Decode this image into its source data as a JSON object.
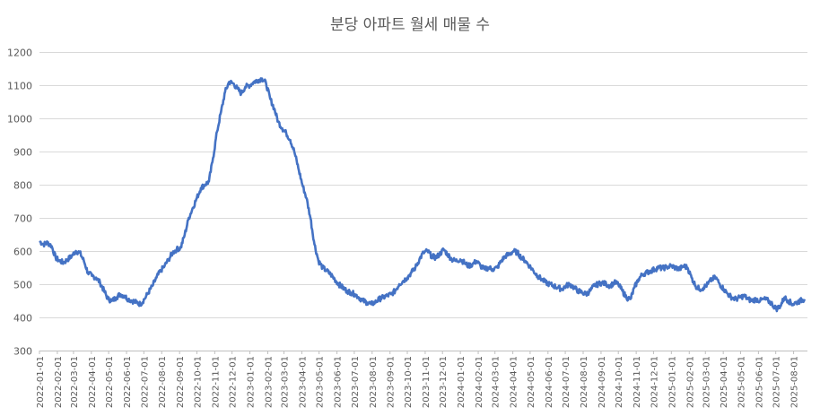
{
  "chart_data": {
    "type": "line",
    "title": "분당 아파트 월세 매물 수",
    "xlabel": "",
    "ylabel": "",
    "ylim": [
      300,
      1200
    ],
    "yticks": [
      300,
      400,
      500,
      600,
      700,
      800,
      900,
      1000,
      1100,
      1200
    ],
    "grid": "horizontal",
    "legend": "none",
    "line_color": "#4472C4",
    "xticks": [
      "2022-01-01",
      "2022-02-01",
      "2022-03-01",
      "2022-04-01",
      "2022-05-01",
      "2022-06-01",
      "2022-07-01",
      "2022-08-01",
      "2022-09-01",
      "2022-10-01",
      "2022-11-01",
      "2022-12-01",
      "2023-01-01",
      "2023-02-01",
      "2023-03-01",
      "2023-04-01",
      "2023-05-01",
      "2023-06-01",
      "2023-07-01",
      "2023-08-01",
      "2023-09-01",
      "2023-10-01",
      "2023-11-01",
      "2023-12-01",
      "2024-01-01",
      "2024-02-01",
      "2024-03-01",
      "2024-04-01",
      "2024-05-01",
      "2024-06-01",
      "2024-07-01",
      "2024-08-01",
      "2024-09-01",
      "2024-10-01",
      "2024-11-01",
      "2024-12-01",
      "2025-01-01",
      "2025-02-01",
      "2025-03-01",
      "2025-04-01",
      "2025-05-01",
      "2025-06-01",
      "2025-07-01",
      "2025-08-01"
    ],
    "series": [
      {
        "values": [
          [
            "2022-01-01",
            630
          ],
          [
            "2022-01-08",
            620
          ],
          [
            "2022-01-15",
            625
          ],
          [
            "2022-01-22",
            615
          ],
          [
            "2022-01-29",
            580
          ],
          [
            "2022-02-05",
            570
          ],
          [
            "2022-02-12",
            565
          ],
          [
            "2022-02-19",
            575
          ],
          [
            "2022-02-26",
            585
          ],
          [
            "2022-03-05",
            600
          ],
          [
            "2022-03-12",
            595
          ],
          [
            "2022-03-19",
            570
          ],
          [
            "2022-03-26",
            535
          ],
          [
            "2022-04-02",
            525
          ],
          [
            "2022-04-09",
            520
          ],
          [
            "2022-04-16",
            505
          ],
          [
            "2022-04-23",
            480
          ],
          [
            "2022-04-30",
            455
          ],
          [
            "2022-05-07",
            450
          ],
          [
            "2022-05-14",
            460
          ],
          [
            "2022-05-21",
            470
          ],
          [
            "2022-05-28",
            465
          ],
          [
            "2022-06-04",
            455
          ],
          [
            "2022-06-11",
            450
          ],
          [
            "2022-06-18",
            445
          ],
          [
            "2022-06-25",
            440
          ],
          [
            "2022-07-02",
            455
          ],
          [
            "2022-07-09",
            475
          ],
          [
            "2022-07-16",
            495
          ],
          [
            "2022-07-23",
            520
          ],
          [
            "2022-07-30",
            540
          ],
          [
            "2022-08-06",
            555
          ],
          [
            "2022-08-13",
            575
          ],
          [
            "2022-08-20",
            595
          ],
          [
            "2022-08-27",
            605
          ],
          [
            "2022-09-03",
            610
          ],
          [
            "2022-09-10",
            650
          ],
          [
            "2022-09-17",
            700
          ],
          [
            "2022-09-24",
            730
          ],
          [
            "2022-10-01",
            760
          ],
          [
            "2022-10-08",
            790
          ],
          [
            "2022-10-15",
            800
          ],
          [
            "2022-10-22",
            810
          ],
          [
            "2022-10-29",
            880
          ],
          [
            "2022-11-05",
            960
          ],
          [
            "2022-11-12",
            1020
          ],
          [
            "2022-11-19",
            1080
          ],
          [
            "2022-11-26",
            1110
          ],
          [
            "2022-12-03",
            1105
          ],
          [
            "2022-12-10",
            1090
          ],
          [
            "2022-12-17",
            1075
          ],
          [
            "2022-12-24",
            1095
          ],
          [
            "2023-01-01",
            1100
          ],
          [
            "2023-01-08",
            1110
          ],
          [
            "2023-01-15",
            1115
          ],
          [
            "2023-01-22",
            1120
          ],
          [
            "2023-01-29",
            1105
          ],
          [
            "2023-02-05",
            1060
          ],
          [
            "2023-02-12",
            1030
          ],
          [
            "2023-02-19",
            990
          ],
          [
            "2023-02-26",
            970
          ],
          [
            "2023-03-05",
            955
          ],
          [
            "2023-03-12",
            935
          ],
          [
            "2023-03-19",
            900
          ],
          [
            "2023-03-26",
            850
          ],
          [
            "2023-04-02",
            800
          ],
          [
            "2023-04-09",
            760
          ],
          [
            "2023-04-16",
            700
          ],
          [
            "2023-04-23",
            620
          ],
          [
            "2023-04-30",
            570
          ],
          [
            "2023-05-07",
            550
          ],
          [
            "2023-05-14",
            540
          ],
          [
            "2023-05-21",
            530
          ],
          [
            "2023-05-28",
            515
          ],
          [
            "2023-06-04",
            500
          ],
          [
            "2023-06-11",
            490
          ],
          [
            "2023-06-18",
            480
          ],
          [
            "2023-06-25",
            475
          ],
          [
            "2023-07-02",
            470
          ],
          [
            "2023-07-09",
            460
          ],
          [
            "2023-07-16",
            450
          ],
          [
            "2023-07-23",
            445
          ],
          [
            "2023-07-30",
            440
          ],
          [
            "2023-08-06",
            445
          ],
          [
            "2023-08-13",
            455
          ],
          [
            "2023-08-20",
            460
          ],
          [
            "2023-08-27",
            465
          ],
          [
            "2023-09-03",
            470
          ],
          [
            "2023-09-10",
            480
          ],
          [
            "2023-09-17",
            500
          ],
          [
            "2023-09-24",
            510
          ],
          [
            "2023-10-01",
            520
          ],
          [
            "2023-10-08",
            535
          ],
          [
            "2023-10-15",
            550
          ],
          [
            "2023-10-22",
            575
          ],
          [
            "2023-10-29",
            595
          ],
          [
            "2023-11-05",
            600
          ],
          [
            "2023-11-12",
            585
          ],
          [
            "2023-11-19",
            580
          ],
          [
            "2023-11-26",
            590
          ],
          [
            "2023-12-03",
            605
          ],
          [
            "2023-12-10",
            590
          ],
          [
            "2023-12-17",
            575
          ],
          [
            "2023-12-24",
            570
          ],
          [
            "2024-01-01",
            575
          ],
          [
            "2024-01-08",
            565
          ],
          [
            "2024-01-15",
            555
          ],
          [
            "2024-01-22",
            560
          ],
          [
            "2024-01-29",
            570
          ],
          [
            "2024-02-05",
            555
          ],
          [
            "2024-02-12",
            545
          ],
          [
            "2024-02-19",
            550
          ],
          [
            "2024-02-26",
            545
          ],
          [
            "2024-03-05",
            550
          ],
          [
            "2024-03-12",
            570
          ],
          [
            "2024-03-19",
            585
          ],
          [
            "2024-03-26",
            590
          ],
          [
            "2024-04-02",
            600
          ],
          [
            "2024-04-09",
            595
          ],
          [
            "2024-04-16",
            580
          ],
          [
            "2024-04-23",
            570
          ],
          [
            "2024-04-30",
            555
          ],
          [
            "2024-05-07",
            540
          ],
          [
            "2024-05-14",
            525
          ],
          [
            "2024-05-21",
            515
          ],
          [
            "2024-05-28",
            505
          ],
          [
            "2024-06-04",
            500
          ],
          [
            "2024-06-11",
            495
          ],
          [
            "2024-06-18",
            490
          ],
          [
            "2024-06-25",
            485
          ],
          [
            "2024-07-02",
            495
          ],
          [
            "2024-07-09",
            500
          ],
          [
            "2024-07-16",
            490
          ],
          [
            "2024-07-23",
            480
          ],
          [
            "2024-07-30",
            475
          ],
          [
            "2024-08-06",
            470
          ],
          [
            "2024-08-13",
            480
          ],
          [
            "2024-08-20",
            495
          ],
          [
            "2024-08-27",
            500
          ],
          [
            "2024-09-03",
            505
          ],
          [
            "2024-09-10",
            500
          ],
          [
            "2024-09-17",
            495
          ],
          [
            "2024-09-24",
            505
          ],
          [
            "2024-10-01",
            500
          ],
          [
            "2024-10-08",
            480
          ],
          [
            "2024-10-15",
            460
          ],
          [
            "2024-10-22",
            455
          ],
          [
            "2024-10-29",
            490
          ],
          [
            "2024-11-05",
            515
          ],
          [
            "2024-11-12",
            530
          ],
          [
            "2024-11-19",
            535
          ],
          [
            "2024-11-26",
            540
          ],
          [
            "2024-12-03",
            545
          ],
          [
            "2024-12-10",
            550
          ],
          [
            "2024-12-17",
            548
          ],
          [
            "2024-12-24",
            552
          ],
          [
            "2025-01-01",
            555
          ],
          [
            "2025-01-08",
            550
          ],
          [
            "2025-01-15",
            545
          ],
          [
            "2025-01-22",
            555
          ],
          [
            "2025-01-29",
            550
          ],
          [
            "2025-02-05",
            520
          ],
          [
            "2025-02-12",
            495
          ],
          [
            "2025-02-19",
            485
          ],
          [
            "2025-02-26",
            490
          ],
          [
            "2025-03-05",
            500
          ],
          [
            "2025-03-12",
            515
          ],
          [
            "2025-03-19",
            520
          ],
          [
            "2025-03-26",
            500
          ],
          [
            "2025-04-02",
            485
          ],
          [
            "2025-04-09",
            470
          ],
          [
            "2025-04-16",
            460
          ],
          [
            "2025-04-23",
            455
          ],
          [
            "2025-04-30",
            460
          ],
          [
            "2025-05-07",
            465
          ],
          [
            "2025-05-14",
            455
          ],
          [
            "2025-05-21",
            450
          ],
          [
            "2025-05-28",
            455
          ],
          [
            "2025-06-04",
            450
          ],
          [
            "2025-06-11",
            455
          ],
          [
            "2025-06-18",
            450
          ],
          [
            "2025-06-25",
            440
          ],
          [
            "2025-07-02",
            425
          ],
          [
            "2025-07-09",
            435
          ],
          [
            "2025-07-16",
            460
          ],
          [
            "2025-07-23",
            450
          ],
          [
            "2025-07-30",
            440
          ],
          [
            "2025-08-06",
            445
          ],
          [
            "2025-08-13",
            450
          ],
          [
            "2025-08-20",
            455
          ]
        ]
      }
    ]
  }
}
